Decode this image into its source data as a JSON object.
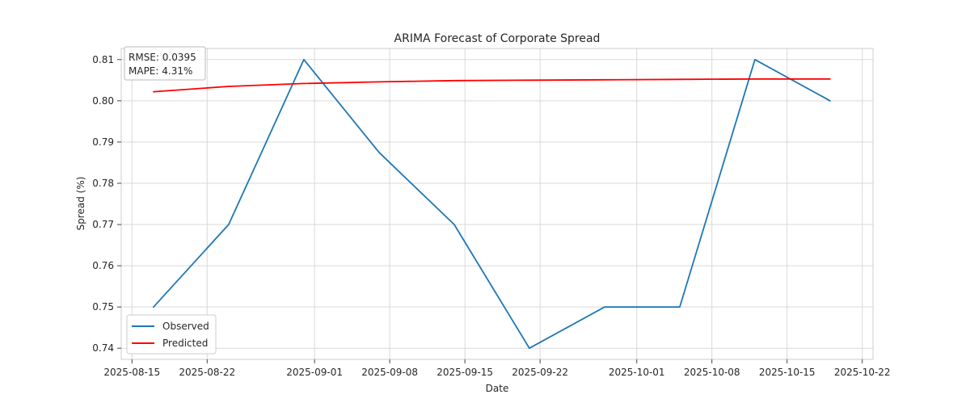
{
  "chart_data": {
    "type": "line",
    "title": "ARIMA Forecast of Corporate Spread",
    "xlabel": "Date",
    "ylabel": "Spread (%)",
    "xlim": [
      "2025-08-14",
      "2025-10-23"
    ],
    "ylim": [
      0.7373,
      0.8127
    ],
    "x_ticks": [
      "2025-08-15",
      "2025-08-22",
      "2025-09-01",
      "2025-09-08",
      "2025-09-15",
      "2025-09-22",
      "2025-10-01",
      "2025-10-08",
      "2025-10-15",
      "2025-10-22"
    ],
    "y_ticks": [
      0.74,
      0.75,
      0.76,
      0.77,
      0.78,
      0.79,
      0.8,
      0.81
    ],
    "y_tick_labels": [
      "0.74",
      "0.75",
      "0.76",
      "0.77",
      "0.78",
      "0.79",
      "0.80",
      "0.81"
    ],
    "grid": true,
    "legend_position": "lower-left",
    "annotation": {
      "rmse_text": "RMSE: 0.0395",
      "mape_text": "MAPE: 4.31%"
    },
    "series": [
      {
        "name": "Observed",
        "color": "#1f77b4",
        "points": [
          {
            "x": "2025-08-17",
            "y": 0.75
          },
          {
            "x": "2025-08-24",
            "y": 0.77
          },
          {
            "x": "2025-08-31",
            "y": 0.81
          },
          {
            "x": "2025-09-07",
            "y": 0.7875
          },
          {
            "x": "2025-09-14",
            "y": 0.77
          },
          {
            "x": "2025-09-21",
            "y": 0.74
          },
          {
            "x": "2025-09-28",
            "y": 0.75
          },
          {
            "x": "2025-10-05",
            "y": 0.75
          },
          {
            "x": "2025-10-12",
            "y": 0.81
          },
          {
            "x": "2025-10-19",
            "y": 0.8
          }
        ]
      },
      {
        "name": "Predicted",
        "color": "#ff0000",
        "points": [
          {
            "x": "2025-08-17",
            "y": 0.8022
          },
          {
            "x": "2025-08-24",
            "y": 0.8035
          },
          {
            "x": "2025-08-31",
            "y": 0.8042
          },
          {
            "x": "2025-09-07",
            "y": 0.8046
          },
          {
            "x": "2025-09-14",
            "y": 0.8049
          },
          {
            "x": "2025-09-21",
            "y": 0.805
          },
          {
            "x": "2025-09-28",
            "y": 0.8051
          },
          {
            "x": "2025-10-05",
            "y": 0.8052
          },
          {
            "x": "2025-10-12",
            "y": 0.8053
          },
          {
            "x": "2025-10-19",
            "y": 0.8053
          }
        ]
      }
    ]
  }
}
